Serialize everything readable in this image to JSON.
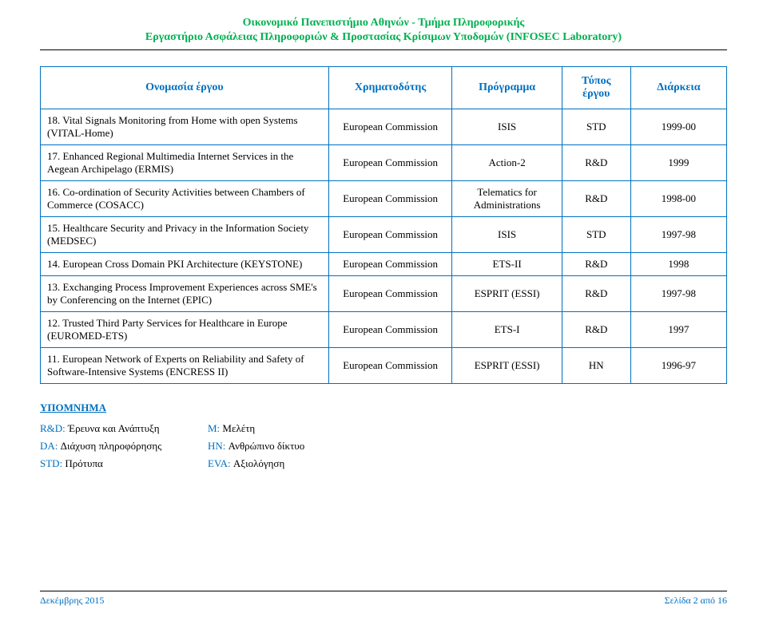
{
  "header": {
    "line1": "Οικονομικό Πανεπιστήμιο Αθηνών - Τμήμα Πληροφορικής",
    "line2": "Εργαστήριο Ασφάλειας Πληροφοριών & Προστασίας Κρίσιμων Υποδομών (INFOSEC Laboratory)"
  },
  "table": {
    "columns": [
      "Ονομασία έργου",
      "Χρηματοδότης",
      "Πρόγραμμα",
      "Τύπος έργου",
      "Διάρκεια"
    ],
    "col_widths_pct": [
      42,
      18,
      16,
      10,
      14
    ],
    "border_color": "#0070c0",
    "header_text_color": "#0070c0",
    "cell_fontsize": 13,
    "header_fontsize": 14,
    "rows": [
      {
        "name": "18. Vital Signals Monitoring from Home with open Systems (VITAL-Home)",
        "funder": "European Commission",
        "program": "ISIS",
        "type": "STD",
        "duration": "1999-00"
      },
      {
        "name": "17. Enhanced Regional Multimedia Internet Services in the Aegean Archipelago (ERMIS)",
        "funder": "European Commission",
        "program": "Action-2",
        "type": "R&D",
        "duration": "1999"
      },
      {
        "name": "16. Co-ordination of Security Activities between Chambers of Commerce (COSACC)",
        "funder": "European Commission",
        "program": "Telematics for Administrations",
        "type": "R&D",
        "duration": "1998-00"
      },
      {
        "name": "15. Healthcare Security and Privacy in the Information Society (MEDSEC)",
        "funder": "European Commission",
        "program": "ISIS",
        "type": "STD",
        "duration": "1997-98"
      },
      {
        "name": "14. European Cross Domain PKI Architecture (KEYSTONE)",
        "funder": "European Commission",
        "program": "ETS-II",
        "type": "R&D",
        "duration": "1998"
      },
      {
        "name": "13. Exchanging Process Improvement Experiences across SME's by Conferencing on the Internet (EPIC)",
        "funder": "European Commission",
        "program": "ESPRIT (ESSI)",
        "type": "R&D",
        "duration": "1997-98"
      },
      {
        "name": "12. Trusted Third Party Services for Healthcare in Europe (EUROMED-ETS)",
        "funder": "European Commission",
        "program": "ETS-I",
        "type": "R&D",
        "duration": "1997"
      },
      {
        "name": "11. European Network of Experts on Reliability and Safety of Software-Intensive Systems (ENCRESS II)",
        "funder": "European Commission",
        "program": "ESPRIT (ESSI)",
        "type": "HN",
        "duration": "1996-97"
      }
    ]
  },
  "legend": {
    "title": "ΥΠΟΜΝΗΜΑ",
    "rows": [
      [
        {
          "code": "R&D:",
          "desc": " Έρευνα και Ανάπτυξη"
        },
        {
          "code": "M:",
          "desc": " Μελέτη"
        }
      ],
      [
        {
          "code": "DA:",
          "desc": " Διάχυση πληροφόρησης"
        },
        {
          "code": "HN:",
          "desc": " Ανθρώπινο δίκτυο"
        }
      ],
      [
        {
          "code": "STD:",
          "desc": " Πρότυπα"
        },
        {
          "code": "EVA:",
          "desc": " Αξιολόγηση"
        }
      ]
    ]
  },
  "footer": {
    "left": "Δεκέμβρης 2015",
    "right": "Σελίδα 2 από 16"
  },
  "colors": {
    "institution_green": "#00b050",
    "accent_blue": "#0070c0",
    "background": "#ffffff",
    "text_black": "#000000"
  }
}
